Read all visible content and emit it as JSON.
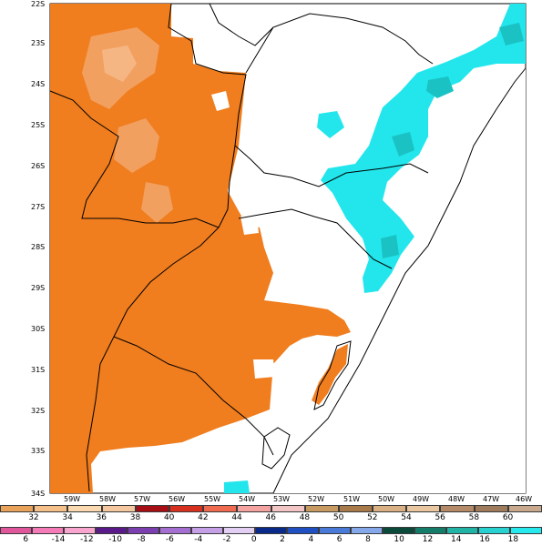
{
  "map": {
    "lat_labels": [
      "22S",
      "23S",
      "24S",
      "25S",
      "26S",
      "27S",
      "28S",
      "29S",
      "30S",
      "31S",
      "32S",
      "33S",
      "34S"
    ],
    "lon_labels": [
      "59W",
      "58W",
      "57W",
      "56W",
      "55W",
      "54W",
      "53W",
      "52W",
      "51W",
      "50W",
      "49W",
      "48W",
      "47W",
      "46W"
    ],
    "colors": {
      "land_fill": "#ffffff",
      "warm_fill": "#f07d1e",
      "warm_light": "#f2a060",
      "warm_lightest": "#f6b683",
      "cool_fill": "#22e6ec",
      "cool_dark": "#1ac2c4",
      "border": "#000000"
    }
  },
  "legend_top": {
    "labels": [
      "32",
      "34",
      "36",
      "38",
      "40",
      "42",
      "44",
      "46",
      "48",
      "50",
      "52",
      "54",
      "56",
      "58",
      "60"
    ],
    "colors": [
      "#e8a25a",
      "#f6c08a",
      "#fbd9b0",
      "#f4c7a0",
      "#a50f15",
      "#d7301f",
      "#ef6a4f",
      "#f4a3a0",
      "#f3c6c6",
      "#c79a62",
      "#a87a4a",
      "#d9b084",
      "#e9c7a0",
      "#b48a68",
      "#9e7b5c",
      "#c9a98e"
    ]
  },
  "legend_bottom": {
    "labels": [
      "6",
      "-14",
      "-12",
      "-10",
      "-8",
      "-6",
      "-4",
      "-2",
      "0",
      "2",
      "4",
      "6",
      "8",
      "10",
      "12",
      "14",
      "16",
      "18"
    ],
    "colors": [
      "#e0569a",
      "#f47ab8",
      "#f8a6cf",
      "#5a1a8a",
      "#7b3fb0",
      "#a46fd0",
      "#c6a0e6",
      "#e3cff3",
      "#0a2a8a",
      "#1f4fc0",
      "#4a7ad8",
      "#84a8ea",
      "#0b4a3a",
      "#167c6a",
      "#20b3a6",
      "#27d2d0",
      "#27e8ec"
    ]
  }
}
